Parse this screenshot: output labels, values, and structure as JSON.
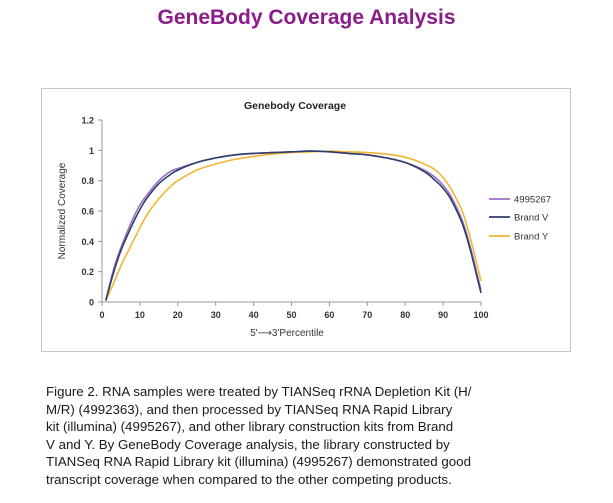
{
  "header": {
    "title": "GeneBody Coverage Analysis"
  },
  "chart_data": {
    "type": "line",
    "title": "Genebody Coverage",
    "xlabel": "5'⟶3'Percentile",
    "ylabel": "Normalized Coverage",
    "xlim": [
      0,
      100
    ],
    "ylim": [
      0,
      1.2
    ],
    "x_ticks": [
      "0",
      "10",
      "20",
      "30",
      "40",
      "50",
      "60",
      "70",
      "80",
      "90",
      "100"
    ],
    "y_ticks": [
      "0",
      "0.2",
      "0.4",
      "0.6",
      "0.8",
      "1",
      "1.2"
    ],
    "grid": false,
    "legend_position": "right",
    "x": [
      1,
      3,
      5,
      8,
      10,
      12,
      15,
      18,
      20,
      25,
      30,
      35,
      40,
      45,
      50,
      55,
      60,
      65,
      70,
      75,
      80,
      85,
      88,
      90,
      92,
      95,
      97,
      99,
      100
    ],
    "series": [
      {
        "name": "4995267",
        "color": "#9b6fc4",
        "values": [
          0.01,
          0.21,
          0.36,
          0.54,
          0.64,
          0.71,
          0.8,
          0.86,
          0.88,
          0.92,
          0.95,
          0.97,
          0.98,
          0.985,
          0.99,
          0.995,
          0.99,
          0.98,
          0.97,
          0.95,
          0.92,
          0.87,
          0.82,
          0.77,
          0.7,
          0.54,
          0.38,
          0.18,
          0.08
        ]
      },
      {
        "name": "Brand V",
        "color": "#2e3d6b",
        "values": [
          0.01,
          0.19,
          0.34,
          0.51,
          0.61,
          0.69,
          0.78,
          0.84,
          0.87,
          0.92,
          0.95,
          0.97,
          0.98,
          0.985,
          0.99,
          0.995,
          0.99,
          0.98,
          0.97,
          0.95,
          0.92,
          0.86,
          0.8,
          0.75,
          0.68,
          0.52,
          0.36,
          0.16,
          0.06
        ]
      },
      {
        "name": "Brand Y",
        "color": "#f2b632",
        "values": [
          0.01,
          0.12,
          0.24,
          0.39,
          0.49,
          0.58,
          0.68,
          0.76,
          0.8,
          0.87,
          0.91,
          0.94,
          0.96,
          0.975,
          0.985,
          0.99,
          0.995,
          0.99,
          0.985,
          0.975,
          0.955,
          0.91,
          0.87,
          0.82,
          0.75,
          0.6,
          0.44,
          0.24,
          0.14
        ]
      }
    ]
  },
  "caption": {
    "lines": [
      "Figure 2. RNA samples were treated by TIANSeq rRNA Depletion Kit (H/",
      "M/R) (4992363), and then processed by TIANSeq RNA Rapid Library",
      "kit (illumina) (4995267), and other library construction kits from Brand",
      "V and Y. By GeneBody Coverage analysis, the library constructed by",
      "TIANSeq RNA Rapid Library kit (illumina) (4995267) demonstrated good",
      "transcript coverage when compared to the other competing products."
    ]
  }
}
